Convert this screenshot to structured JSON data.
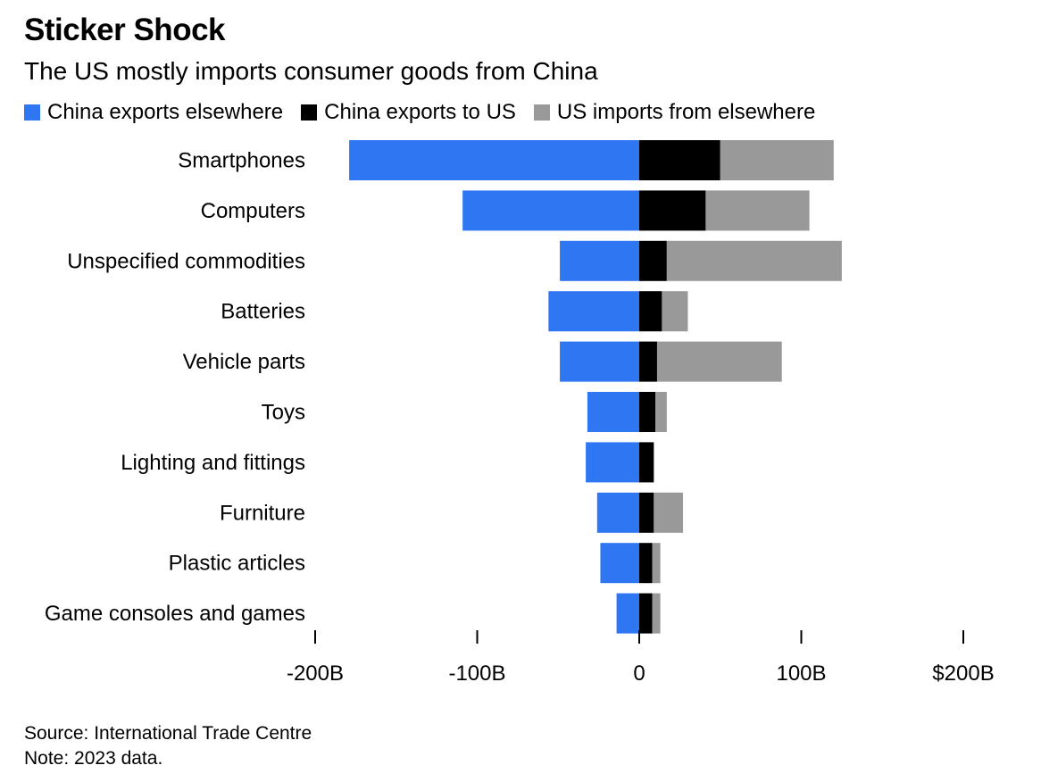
{
  "title": "Sticker Shock",
  "subtitle": "The US mostly imports consumer goods from China",
  "legend": [
    {
      "label": "China exports elsewhere",
      "color": "#2f76f3"
    },
    {
      "label": "China exports to US",
      "color": "#000000"
    },
    {
      "label": "US imports from elsewhere",
      "color": "#999999"
    }
  ],
  "chart_data": {
    "type": "bar",
    "orientation": "horizontal",
    "stacked": true,
    "title": "Sticker Shock",
    "subtitle": "The US mostly imports consumer goods from China",
    "categories": [
      "Smartphones",
      "Computers",
      "Unspecified commodities",
      "Batteries",
      "Vehicle parts",
      "Toys",
      "Lighting and fittings",
      "Furniture",
      "Plastic articles",
      "Game consoles and games"
    ],
    "series": [
      {
        "name": "China exports elsewhere",
        "color": "#2f76f3",
        "values": [
          -179,
          -109,
          -49,
          -56,
          -49,
          -32,
          -33,
          -26,
          -24,
          -14
        ]
      },
      {
        "name": "China exports to US",
        "color": "#000000",
        "values": [
          50,
          41,
          17,
          14,
          11,
          10,
          9,
          9,
          8,
          8
        ]
      },
      {
        "name": "US imports from elsewhere",
        "color": "#999999",
        "values": [
          70,
          64,
          108,
          16,
          77,
          7,
          0,
          18,
          5,
          5
        ]
      }
    ],
    "xlim": [
      -200,
      200
    ],
    "xticks": [
      -200,
      -100,
      0,
      100,
      200
    ],
    "xtick_labels": [
      "-200B",
      "-100B",
      "0",
      "100B",
      "$200B"
    ],
    "legend_position": "top-left",
    "grid": false
  },
  "footer": {
    "source": "Source: International Trade Centre",
    "note": "Note: 2023 data."
  }
}
